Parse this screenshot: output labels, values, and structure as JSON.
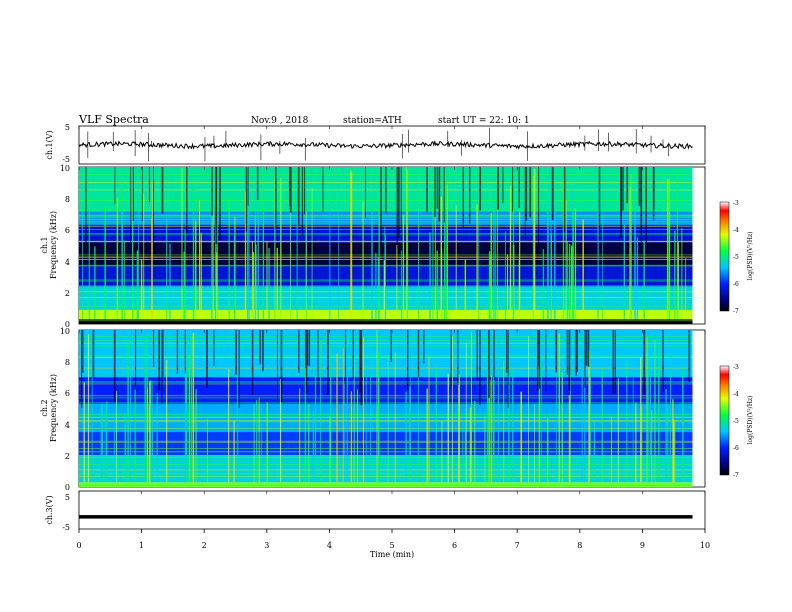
{
  "header": {
    "title": "VLF  Spectra",
    "date": "Nov.9  , 2018",
    "station": "station=ATH",
    "start": "start  UT  =   22: 10: 1"
  },
  "chart_data": [
    {
      "type": "line",
      "panel": "ch1-waveform",
      "ylabel": "ch.1(V)",
      "ylim": [
        -5,
        5
      ],
      "y_ticks": [
        "5",
        "-5"
      ],
      "description_level_V": 0
    },
    {
      "type": "heatmap",
      "panel": "ch1-spectrogram",
      "ylabel": "ch.1\nFrequency  (kHz)",
      "ylabel_line1": "ch.1",
      "ylabel_line2": "Frequency  (kHz)",
      "ylim": [
        0,
        10
      ],
      "y_ticks": [
        "0",
        "2",
        "4",
        "6",
        "8",
        "10"
      ],
      "colorbar": {
        "label": "log(PSD)(V²/Hz)",
        "range": [
          -7,
          -3
        ],
        "ticks": [
          "-3",
          "-4",
          "-5",
          "-6",
          "-7"
        ]
      },
      "bands_kHz": [
        {
          "range": [
            0,
            0.3
          ],
          "level": -7
        },
        {
          "range": [
            0.3,
            0.9
          ],
          "level": -4.3
        },
        {
          "range": [
            0.9,
            2.4
          ],
          "level": -5.3
        },
        {
          "range": [
            2.4,
            3.7
          ],
          "level": -6.2
        },
        {
          "range": [
            3.7,
            5.2
          ],
          "level": -6.8
        },
        {
          "range": [
            5.2,
            6.3
          ],
          "level": -6.2
        },
        {
          "range": [
            6.3,
            7.2
          ],
          "level": -5.6
        },
        {
          "range": [
            7.2,
            10
          ],
          "level": -5.1
        }
      ]
    },
    {
      "type": "heatmap",
      "panel": "ch2-spectrogram",
      "ylabel_line1": "ch.2",
      "ylabel_line2": "Frequency  (kHz)",
      "ylim": [
        0,
        10
      ],
      "y_ticks": [
        "0",
        "2",
        "4",
        "6",
        "8",
        "10"
      ],
      "colorbar": {
        "label": "log(PSD)(V²/Hz)",
        "range": [
          -7,
          -3
        ],
        "ticks": [
          "-3",
          "-4",
          "-5",
          "-6",
          "-7"
        ]
      },
      "bands_kHz": [
        {
          "range": [
            0,
            0.3
          ],
          "level": -4.5
        },
        {
          "range": [
            0.3,
            2.0
          ],
          "level": -5.3
        },
        {
          "range": [
            2.0,
            3.5
          ],
          "level": -5.9
        },
        {
          "range": [
            3.5,
            5.3
          ],
          "level": -5.5
        },
        {
          "range": [
            5.3,
            7.0
          ],
          "level": -6.0
        },
        {
          "range": [
            7.0,
            10
          ],
          "level": -5.4
        }
      ]
    },
    {
      "type": "line",
      "panel": "ch3-waveform",
      "ylabel": "ch.3(V)",
      "ylim": [
        -5,
        5
      ],
      "y_ticks": [
        "5",
        "-5"
      ],
      "level_V": -1.8
    }
  ],
  "x_axis": {
    "label": "Time  (min)",
    "range": [
      0,
      10
    ],
    "ticks": [
      "0",
      "1",
      "2",
      "3",
      "4",
      "5",
      "6",
      "7",
      "8",
      "9",
      "10"
    ],
    "data_end_min": 9.8
  },
  "colors": {
    "colorbar_top": "#ffffff",
    "colorbar_bottom": "#000000"
  }
}
